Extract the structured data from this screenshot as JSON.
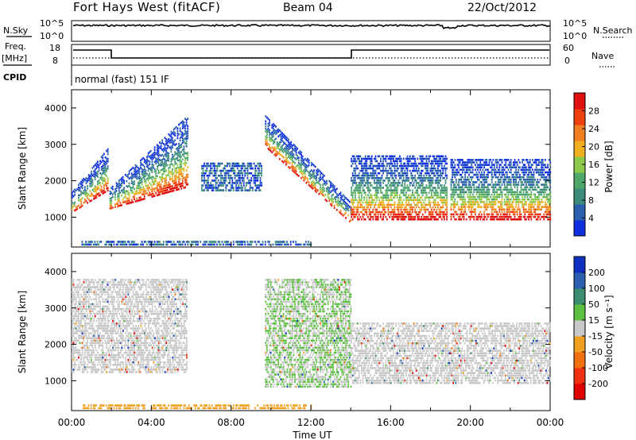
{
  "header": {
    "station": "Fort Hays West (fitACF)",
    "beam": "Beam 04",
    "date": "22/Oct/2012"
  },
  "nsky_panel": {
    "left_label": "N.Sky",
    "left_ticks": [
      "10^5",
      "10^0"
    ],
    "right_label": "N.Search",
    "right_ticks": [
      "10^5",
      "10^0"
    ]
  },
  "freq_panel": {
    "left_label_1": "Freq.",
    "left_label_2": "[MHz]",
    "left_ticks": [
      "18",
      "8"
    ],
    "right_label": "Nave",
    "right_ticks": [
      "60",
      "0"
    ],
    "cpid_label": "CPID",
    "cpid_value": "normal (fast) 151 IF"
  },
  "time_axis": {
    "label": "Time UT",
    "ticks": [
      "00:00",
      "04:00",
      "08:00",
      "12:00",
      "16:00",
      "20:00",
      "00:00"
    ]
  },
  "chart_data": [
    {
      "type": "heatmap",
      "panel": "power",
      "ylabel": "Slant Range [km]",
      "yticks": [
        "1000",
        "2000",
        "3000",
        "4000"
      ],
      "ylim": [
        180,
        4500
      ],
      "xlim_hours": [
        0,
        24
      ],
      "colorbar": {
        "label": "Power [dB]",
        "ticks": [
          "4",
          "8",
          "12",
          "16",
          "20",
          "24",
          "28"
        ],
        "colors": [
          "#1030e0",
          "#2a5fb0",
          "#3c8c7a",
          "#4ea86a",
          "#8cc84a",
          "#f0b020",
          "#f08020",
          "#f04010",
          "#e01010"
        ]
      },
      "echo_regions": [
        {
          "t_start": 0.0,
          "t_end": 1.8,
          "range_low": 1100,
          "range_high": 2900,
          "note": "sloped band"
        },
        {
          "t_start": 1.9,
          "t_end": 5.8,
          "range_low": 1200,
          "range_high": 3800,
          "note": "rising band"
        },
        {
          "t_start": 6.5,
          "t_end": 9.5,
          "range_low": 1700,
          "range_high": 2500,
          "note": "weak scatter"
        },
        {
          "t_start": 9.7,
          "t_end": 14.0,
          "range_low": 800,
          "range_high": 3800,
          "note": "descending band"
        },
        {
          "t_start": 14.0,
          "t_end": 18.8,
          "range_low": 900,
          "range_high": 2700,
          "note": "flat band"
        },
        {
          "t_start": 19.0,
          "t_end": 24.0,
          "range_low": 900,
          "range_high": 2600,
          "note": "flat band"
        },
        {
          "t_start": 0.5,
          "t_end": 12.0,
          "range_low": 200,
          "range_high": 350,
          "note": "ground scatter"
        }
      ]
    },
    {
      "type": "heatmap",
      "panel": "velocity",
      "ylabel": "Slant Range [km]",
      "yticks": [
        "1000",
        "2000",
        "3000",
        "4000"
      ],
      "ylim": [
        180,
        4500
      ],
      "xlim_hours": [
        0,
        24
      ],
      "colorbar": {
        "label": "Velocity [m s⁻¹]",
        "ticks": [
          "200",
          "100",
          "50",
          "15",
          "-15",
          "-50",
          "-100",
          "-200"
        ],
        "colors": [
          "#1030c0",
          "#2a60b0",
          "#3c8c70",
          "#5cc040",
          "#c8c8c8",
          "#f0a020",
          "#f07010",
          "#f03010",
          "#e00000"
        ]
      },
      "echo_regions": [
        {
          "t_start": 0.0,
          "t_end": 5.8,
          "range_low": 1200,
          "range_high": 3800,
          "note": "mostly ~0 m/s (grey)"
        },
        {
          "t_start": 9.7,
          "t_end": 14.0,
          "range_low": 800,
          "range_high": 3800,
          "note": "grey to green"
        },
        {
          "t_start": 14.0,
          "t_end": 24.0,
          "range_low": 900,
          "range_high": 2600,
          "note": "grey"
        },
        {
          "t_start": 0.5,
          "t_end": 12.0,
          "range_low": 200,
          "range_high": 350,
          "note": "orange ground scatter"
        }
      ]
    }
  ]
}
